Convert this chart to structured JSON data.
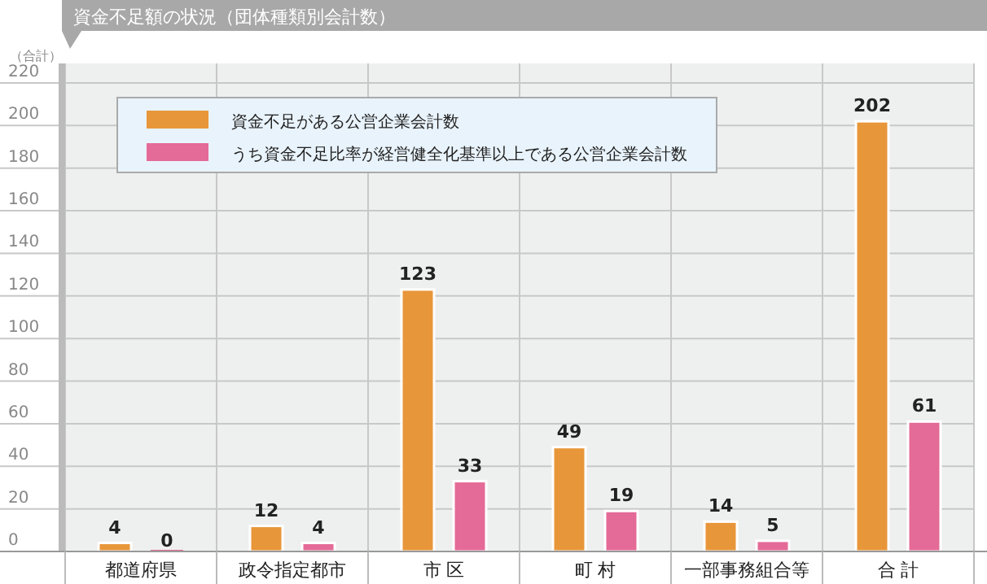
{
  "chart_data": {
    "type": "bar",
    "title": "資金不足額の状況（団体種類別会計数）",
    "ylabel": "（合計）",
    "categories": [
      "都道府県",
      "政令指定都市",
      "市 区",
      "町 村",
      "一部事務組合等",
      "合 計"
    ],
    "series": [
      {
        "name": "資金不足がある公営企業会計数",
        "color": "#e8963a",
        "values": [
          4,
          12,
          123,
          49,
          14,
          202
        ]
      },
      {
        "name": "うち資金不足比率が経営健全化基準以上である公営企業会計数",
        "color": "#e46a97",
        "values": [
          0,
          4,
          33,
          19,
          5,
          61
        ]
      }
    ],
    "ylim": [
      0,
      220
    ],
    "yticks": [
      0,
      20,
      40,
      60,
      80,
      100,
      120,
      140,
      160,
      180,
      200,
      220
    ],
    "grid": true,
    "legend": "top left",
    "data_labels": true
  }
}
